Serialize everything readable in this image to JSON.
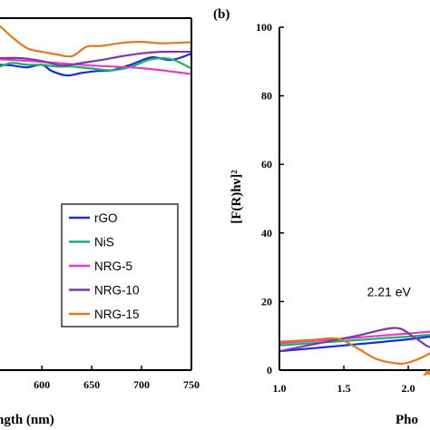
{
  "colors": {
    "rGO": "#1f2ad6",
    "NiS": "#17b26a",
    "NRG-5": "#e43cc6",
    "NRG-10": "#7a3aa8",
    "NRG-15": "#e07a1c",
    "axis": "#000000"
  },
  "chart_data": [
    {
      "type": "line",
      "panel_label": "",
      "xlabel": "ngth (nm)",
      "ylabel": "",
      "xlim": [
        558,
        750
      ],
      "ylim": [
        0,
        100
      ],
      "x_ticks": [
        "600",
        "650",
        "700",
        "750"
      ],
      "x_tick_values": [
        600,
        650,
        700,
        750
      ],
      "legend": {
        "position": "center-right",
        "entries": [
          "rGO",
          "NiS",
          "NRG-5",
          "NRG-10",
          "NRG-15"
        ]
      },
      "series": [
        {
          "name": "rGO",
          "x": [
            558,
            570,
            585,
            600,
            610,
            625,
            640,
            655,
            670,
            690,
            710,
            730,
            750
          ],
          "y": [
            82.5,
            82.3,
            81.8,
            82.5,
            80.8,
            79.6,
            80.3,
            80.8,
            81.0,
            82.6,
            84.5,
            83.8,
            85.5
          ]
        },
        {
          "name": "NiS",
          "x": [
            558,
            570,
            585,
            600,
            615,
            630,
            650,
            670,
            690,
            710,
            730,
            750
          ],
          "y": [
            82.0,
            83.0,
            82.5,
            82.5,
            82.0,
            82.0,
            81.5,
            81.0,
            82.0,
            84.0,
            84.0,
            81.5
          ]
        },
        {
          "name": "NRG-5",
          "x": [
            558,
            600,
            650,
            700,
            750
          ],
          "y": [
            84.0,
            83.3,
            82.3,
            81.6,
            80.0
          ]
        },
        {
          "name": "NRG-10",
          "x": [
            558,
            580,
            600,
            620,
            640,
            660,
            680,
            700,
            720,
            750
          ],
          "y": [
            84.3,
            84.3,
            83.5,
            82.3,
            83.0,
            83.8,
            84.8,
            85.6,
            86.0,
            86.0
          ]
        },
        {
          "name": "NRG-15",
          "x": [
            558,
            570,
            585,
            600,
            615,
            630,
            645,
            660,
            680,
            700,
            720,
            750
          ],
          "y": [
            93.0,
            90.0,
            87.0,
            86.0,
            85.3,
            84.8,
            87.4,
            87.6,
            88.4,
            88.7,
            88.3,
            88.6
          ]
        }
      ]
    },
    {
      "type": "line",
      "panel_label": "(b)",
      "xlabel": "Pho",
      "ylabel": "[F(R)hν]²",
      "xlim": [
        1.0,
        2.72
      ],
      "ylim": [
        0,
        100
      ],
      "x_ticks": [
        "1.0",
        "1.5",
        "2.0"
      ],
      "x_tick_values": [
        1.0,
        1.5,
        2.0
      ],
      "y_ticks": [
        "0",
        "20",
        "40",
        "60",
        "80",
        "100"
      ],
      "y_tick_values": [
        0,
        20,
        40,
        60,
        80,
        100
      ],
      "annotations": [
        {
          "text": "2.21 eV",
          "x": 1.85,
          "y": 21.6
        }
      ],
      "series": [
        {
          "name": "rGO",
          "x": [
            1.0,
            1.5,
            2.0,
            2.3,
            2.5,
            2.72
          ],
          "y": [
            5.5,
            7.2,
            9.0,
            10.5,
            12.5,
            15.0
          ]
        },
        {
          "name": "NiS",
          "x": [
            1.0,
            1.5,
            2.0,
            2.3,
            2.5,
            2.72
          ],
          "y": [
            7.2,
            8.5,
            9.8,
            10.8,
            12.5,
            14.5
          ]
        },
        {
          "name": "NRG-5",
          "x": [
            1.0,
            1.5,
            2.0,
            2.3,
            2.5,
            2.72
          ],
          "y": [
            7.8,
            9.2,
            10.7,
            11.7,
            13.0,
            14.8
          ]
        },
        {
          "name": "NRG-10",
          "x": [
            1.0,
            1.3,
            1.6,
            1.9,
            2.05,
            2.2,
            2.4,
            2.6,
            2.72
          ],
          "y": [
            5.5,
            7.8,
            10.0,
            12.3,
            9.5,
            6.5,
            10.0,
            13.0,
            14.5
          ]
        },
        {
          "name": "NRG-15",
          "x": [
            1.0,
            1.25,
            1.45,
            1.6,
            1.75,
            1.9,
            2.0,
            2.15,
            2.35,
            2.55,
            2.72
          ],
          "y": [
            8.3,
            8.8,
            9.2,
            6.5,
            3.3,
            2.0,
            2.2,
            4.5,
            9.0,
            12.5,
            14.0
          ]
        }
      ]
    }
  ]
}
